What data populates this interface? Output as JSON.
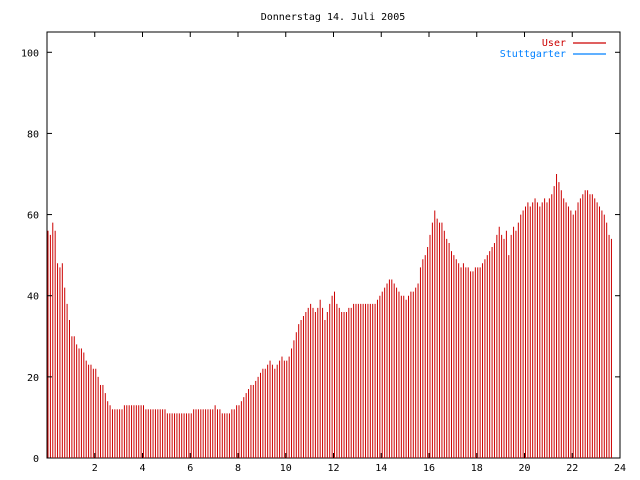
{
  "chart_data": {
    "type": "bar",
    "title": "Donnerstag 14. Juli 2005",
    "xlim": [
      0,
      24
    ],
    "ylim": [
      0,
      105
    ],
    "x_ticks": [
      2,
      4,
      6,
      8,
      10,
      12,
      14,
      16,
      18,
      20,
      22,
      24
    ],
    "x_tick_labels": [
      "2",
      "4",
      "6",
      "8",
      "10",
      "12",
      "14",
      "16",
      "18",
      "20",
      "22",
      "24"
    ],
    "y_ticks": [
      0,
      20,
      40,
      60,
      80,
      100
    ],
    "y_tick_labels": [
      "0",
      "20",
      "40",
      "60",
      "80",
      "100"
    ],
    "legend_position": "top-right",
    "series": [
      {
        "name": "User",
        "color": "#cc0000",
        "style": "impulses",
        "sample_interval_hours": 0.1,
        "values": [
          56,
          55,
          58,
          56,
          48,
          47,
          48,
          42,
          38,
          34,
          30,
          30,
          28,
          27,
          27,
          26,
          24,
          23,
          23,
          22,
          22,
          20,
          18,
          18,
          16,
          14,
          13,
          12,
          12,
          12,
          12,
          12,
          13,
          13,
          13,
          13,
          13,
          13,
          13,
          13,
          13,
          12,
          12,
          12,
          12,
          12,
          12,
          12,
          12,
          12,
          11,
          11,
          11,
          11,
          11,
          11,
          11,
          11,
          11,
          11,
          11,
          12,
          12,
          12,
          12,
          12,
          12,
          12,
          12,
          12,
          13,
          12,
          12,
          11,
          11,
          11,
          11,
          12,
          12,
          13,
          13,
          14,
          15,
          16,
          17,
          18,
          18,
          19,
          20,
          21,
          22,
          22,
          23,
          24,
          23,
          22,
          23,
          24,
          25,
          24,
          24,
          25,
          27,
          29,
          31,
          33,
          34,
          35,
          36,
          37,
          38,
          37,
          36,
          37,
          39,
          37,
          34,
          36,
          38,
          40,
          41,
          38,
          37,
          36,
          36,
          36,
          37,
          37,
          38,
          38,
          38,
          38,
          38,
          38,
          38,
          38,
          38,
          38,
          39,
          40,
          41,
          42,
          43,
          44,
          44,
          43,
          42,
          41,
          40,
          40,
          39,
          40,
          41,
          41,
          42,
          43,
          47,
          49,
          50,
          52,
          55,
          58,
          61,
          59,
          58,
          58,
          56,
          54,
          53,
          51,
          50,
          49,
          48,
          47,
          48,
          47,
          47,
          46,
          46,
          47,
          47,
          47,
          48,
          49,
          50,
          51,
          52,
          53,
          55,
          57,
          55,
          54,
          56,
          50,
          55,
          57,
          56,
          58,
          60,
          61,
          62,
          63,
          62,
          63,
          64,
          63,
          62,
          63,
          64,
          63,
          64,
          65,
          67,
          70,
          68,
          66,
          64,
          63,
          62,
          61,
          60,
          61,
          63,
          64,
          65,
          66,
          66,
          65,
          65,
          64,
          63,
          62,
          61,
          60,
          58,
          55,
          54
        ]
      },
      {
        "name": "Stuttgarter",
        "color": "#0080ff",
        "style": "lines",
        "values": []
      }
    ]
  }
}
